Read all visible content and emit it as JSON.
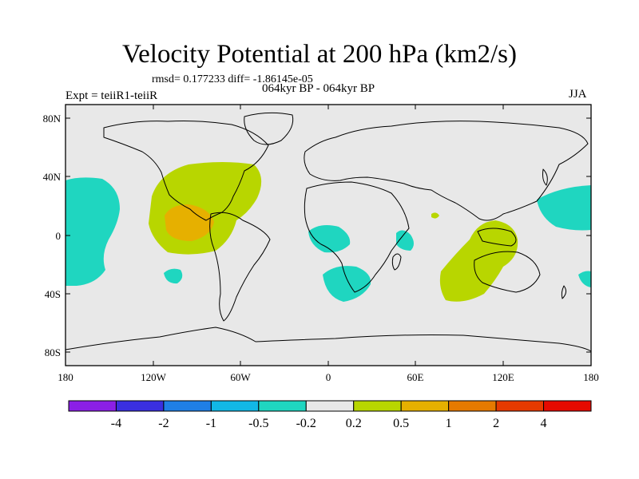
{
  "header": {
    "title": "Velocity Potential at 200 hPa (km2/s)",
    "stats": "rmsd= 0.177233  diff= -1.86145e-05",
    "expt": "Expt = teiiR1-teiiR",
    "period": "064kyr BP - 064kyr BP",
    "season": "JJA"
  },
  "axes": {
    "y_labels": [
      "80N",
      "40N",
      "0",
      "40S",
      "80S"
    ],
    "x_labels": [
      "180",
      "120W",
      "60W",
      "0",
      "60E",
      "120E",
      "180"
    ]
  },
  "colorbar": {
    "labels": [
      "-4",
      "-2",
      "-1",
      "-0.5",
      "-0.2",
      "0.2",
      "0.5",
      "1",
      "2",
      "4"
    ],
    "colors": [
      "#8b1fe6",
      "#3a2fe0",
      "#1f7fe6",
      "#12b8e6",
      "#1fd6c0",
      "#e8e8e8",
      "#b8d600",
      "#e6b000",
      "#e67a00",
      "#e63a00",
      "#e60a00"
    ]
  },
  "map": {
    "background": "#e8e8e8",
    "anomaly_colors": {
      "neg": "#1fd6c0",
      "pos_weak": "#b8d600",
      "pos_mid": "#e6b000"
    }
  }
}
